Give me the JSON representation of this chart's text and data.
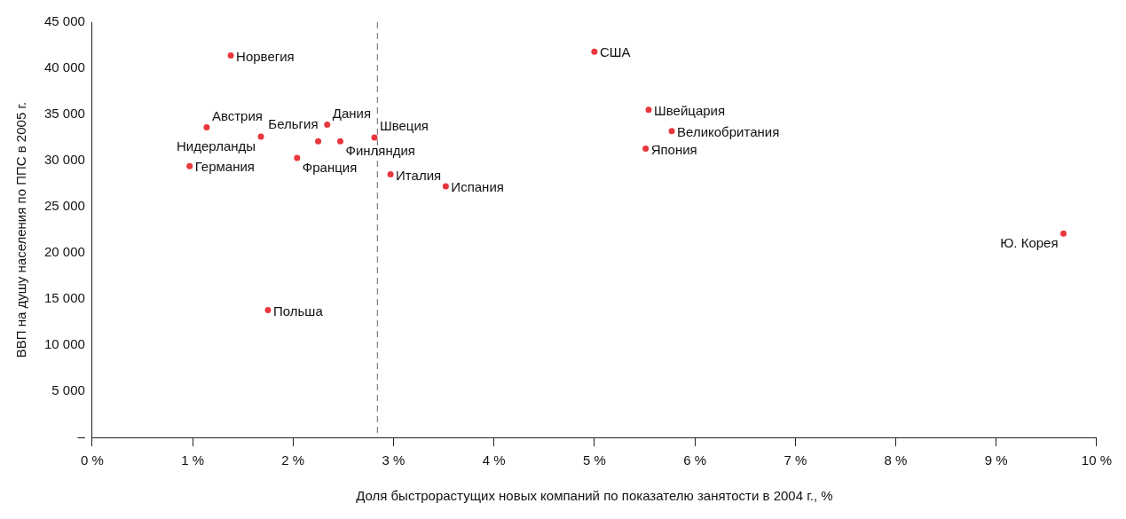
{
  "chart_data": {
    "type": "scatter",
    "xlabel": "Доля быстрорастущих новых компаний по показателю занятости в 2004 г., %",
    "ylabel": "ВВП на душу населения по ППС в 2005 г.",
    "x": [
      1.38,
      1.14,
      1.68,
      0.97,
      1.75,
      2.34,
      2.47,
      2.25,
      2.04,
      2.81,
      2.97,
      3.52,
      5.0,
      5.54,
      5.77,
      5.51,
      9.67
    ],
    "series": [
      {
        "color": "#e8383d",
        "values": [
          41400,
          33600,
          32600,
          29400,
          13800,
          33900,
          32100,
          32100,
          30300,
          32500,
          28500,
          27200,
          41800,
          35500,
          33200,
          31300,
          22100
        ]
      }
    ],
    "annotations": [
      {
        "text": "Норвегия",
        "x": 1.38,
        "y": 41400
      },
      {
        "text": "Австрия",
        "x": 1.14,
        "y": 33600
      },
      {
        "text": "Нидерланды",
        "x": 1.68,
        "y": 32600
      },
      {
        "text": "Германия",
        "x": 0.97,
        "y": 29400
      },
      {
        "text": "Польша",
        "x": 1.75,
        "y": 13800
      },
      {
        "text": "Дания",
        "x": 2.34,
        "y": 33900
      },
      {
        "text": "Финляндия",
        "x": 2.47,
        "y": 32100
      },
      {
        "text": "Бельгия",
        "x": 2.25,
        "y": 32100
      },
      {
        "text": "Франция",
        "x": 2.04,
        "y": 30300
      },
      {
        "text": "Швеция",
        "x": 2.81,
        "y": 32500
      },
      {
        "text": "Италия",
        "x": 2.97,
        "y": 28500
      },
      {
        "text": "Испания",
        "x": 3.52,
        "y": 27200
      },
      {
        "text": "США",
        "x": 5.0,
        "y": 41800
      },
      {
        "text": "Швейцария",
        "x": 5.54,
        "y": 35500
      },
      {
        "text": "Великобритания",
        "x": 5.77,
        "y": 33200
      },
      {
        "text": "Япония",
        "x": 5.51,
        "y": 31300
      },
      {
        "text": "Ю. Корея",
        "x": 9.67,
        "y": 22100
      }
    ],
    "ref_lines": [
      {
        "axis": "x",
        "value": 2.84,
        "color": "#808080",
        "line_style": "dashed"
      }
    ],
    "xlim": [
      0,
      10
    ],
    "xticks": [
      {
        "value": 0,
        "label": "0 %"
      },
      {
        "value": 1,
        "label": "1 %"
      },
      {
        "value": 2,
        "label": "2 %"
      },
      {
        "value": 3,
        "label": "3 %"
      },
      {
        "value": 4,
        "label": "4 %"
      },
      {
        "value": 5,
        "label": "5 %"
      },
      {
        "value": 6,
        "label": "6 %"
      },
      {
        "value": 7,
        "label": "7 %"
      },
      {
        "value": 8,
        "label": "8 %"
      },
      {
        "value": 9,
        "label": "9 %"
      },
      {
        "value": 10,
        "label": "10 %"
      }
    ],
    "ylim": [
      0,
      45000
    ],
    "yticks": [
      {
        "value": 0,
        "label": "–"
      },
      {
        "value": 5000,
        "label": "5 000"
      },
      {
        "value": 10000,
        "label": "10 000"
      },
      {
        "value": 15000,
        "label": "15 000"
      },
      {
        "value": 20000,
        "label": "20 000"
      },
      {
        "value": 25000,
        "label": "25 000"
      },
      {
        "value": 30000,
        "label": "30 000"
      },
      {
        "value": 35000,
        "label": "35 000"
      },
      {
        "value": 40000,
        "label": "40 000"
      },
      {
        "value": 45000,
        "label": "45 000"
      }
    ],
    "legend": false,
    "marker": "circle"
  }
}
